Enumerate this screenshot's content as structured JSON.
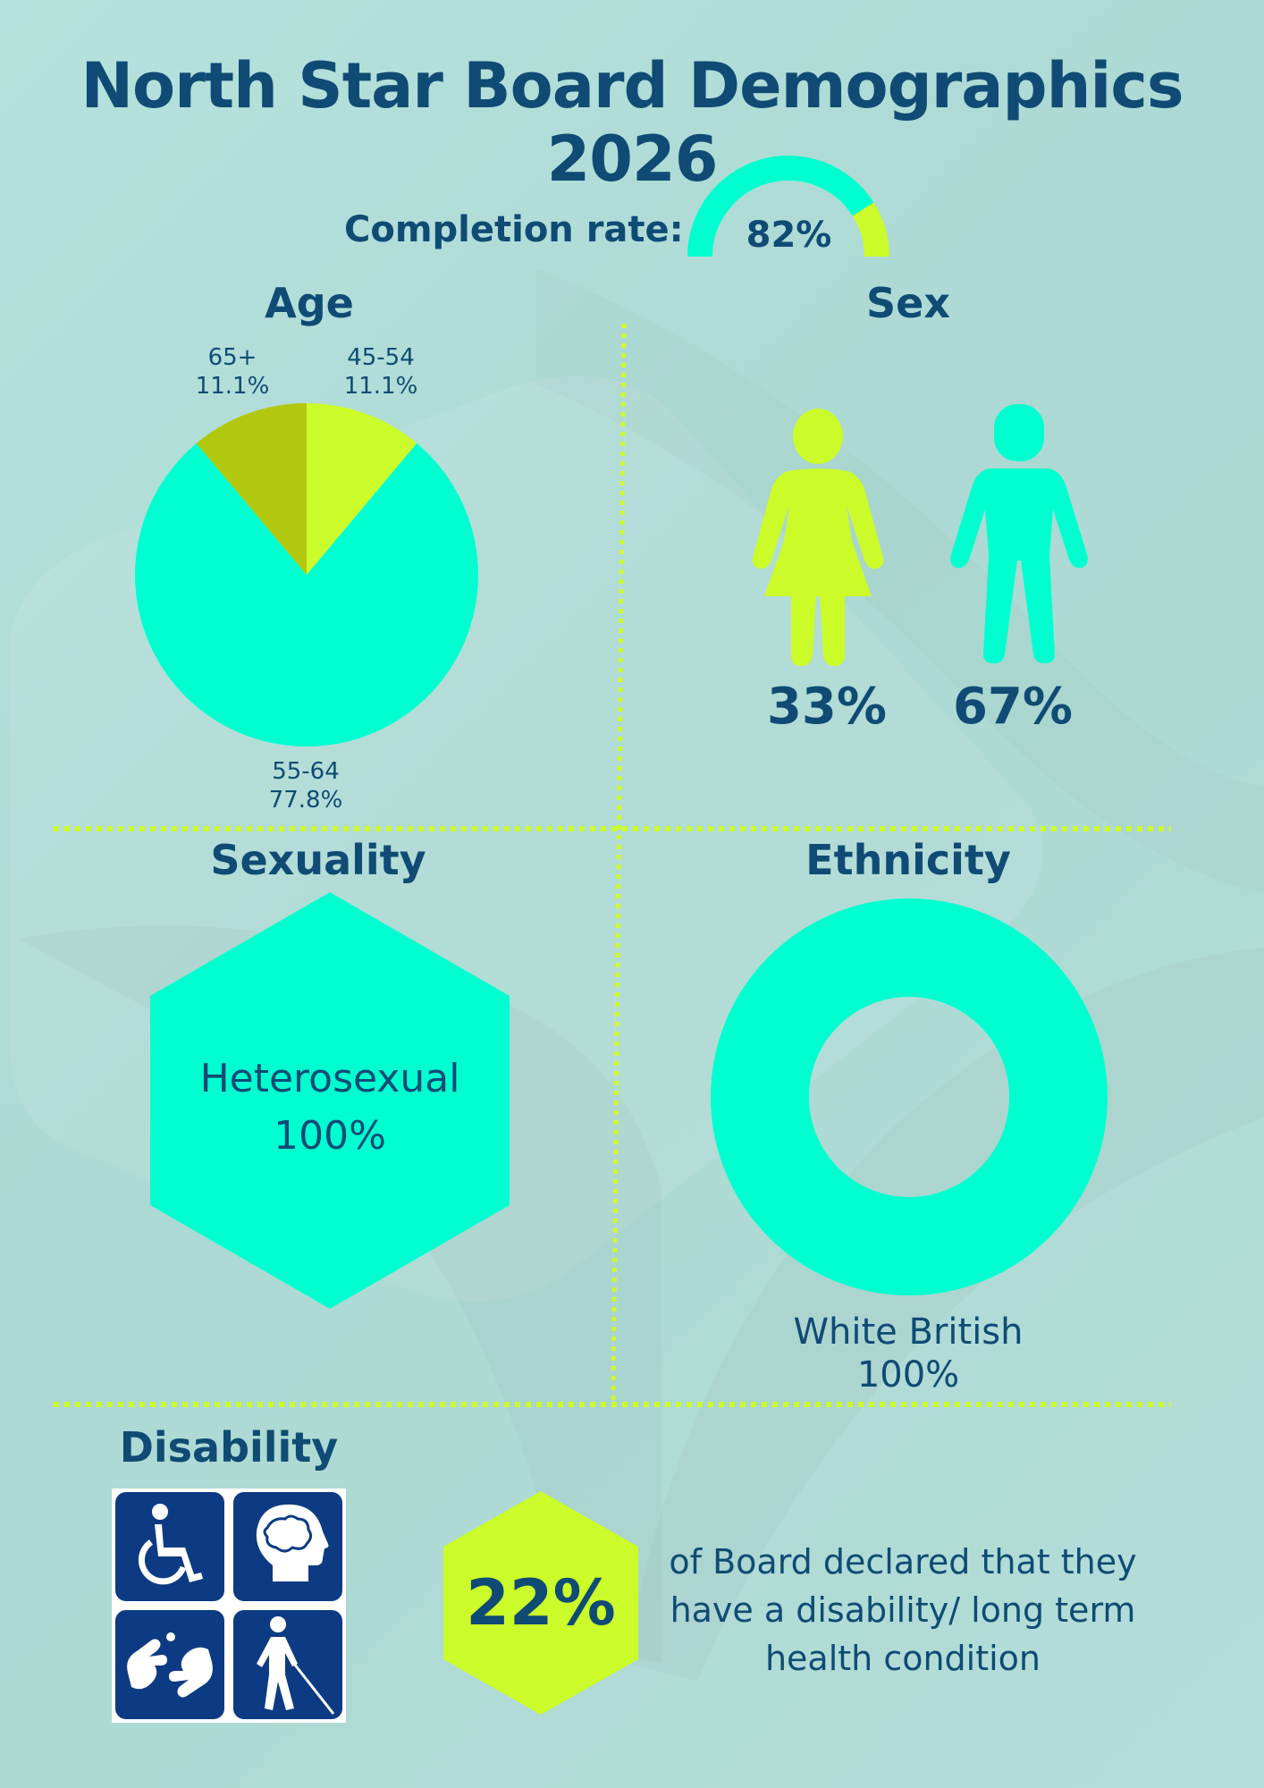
{
  "title": "North Star Board Demographics 2026",
  "colors": {
    "navy": "#0f4b74",
    "teal": "#00ffd0",
    "lime": "#cbfb29",
    "olive": "#b2c80f",
    "background": "#b1ddd8",
    "icon_blue": "#0d3b83"
  },
  "completion": {
    "label": "Completion rate:",
    "value_text": "82%",
    "value": 0.82
  },
  "sections": {
    "age": "Age",
    "sex": "Sex",
    "sexuality": "Sexuality",
    "ethnicity": "Ethnicity",
    "disability": "Disability"
  },
  "age_labels": {
    "l65": {
      "cat": "65+",
      "pct": "11.1%"
    },
    "l45": {
      "cat": "45-54",
      "pct": "11.1%"
    },
    "l55": {
      "cat": "55-64",
      "pct": "77.8%"
    }
  },
  "sex": {
    "female_pct": "33%",
    "male_pct": "67%",
    "icons": [
      "female-figure-icon",
      "male-figure-icon"
    ]
  },
  "sexuality": {
    "label": "Heterosexual",
    "pct": "100%"
  },
  "ethnicity": {
    "label": "White British",
    "pct": "100%"
  },
  "disability": {
    "pct": "22%",
    "text": "of Board declared that they have a disability/ long term health condition",
    "icons": [
      "wheelchair-icon",
      "head-profile-icon",
      "sign-language-icon",
      "blind-cane-icon"
    ]
  },
  "chart_data": [
    {
      "type": "pie",
      "title": "Age",
      "categories": [
        "45-54",
        "55-64",
        "65+"
      ],
      "values": [
        11.1,
        77.8,
        11.1
      ],
      "colors": [
        "#cbfb29",
        "#00ffd0",
        "#b2c80f"
      ]
    },
    {
      "type": "pie",
      "title": "Ethnicity",
      "categories": [
        "White British"
      ],
      "values": [
        100
      ],
      "colors": [
        "#00ffd0"
      ]
    }
  ]
}
